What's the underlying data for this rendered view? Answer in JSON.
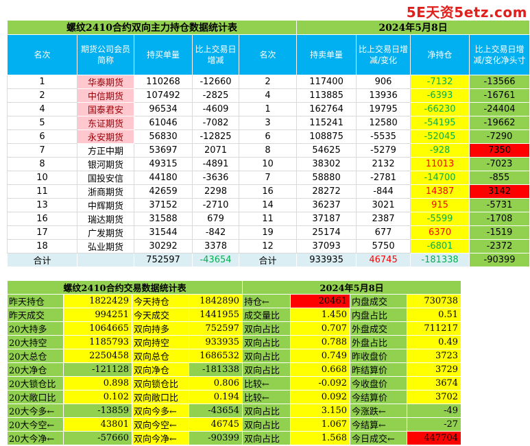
{
  "watermark": "5E天资5etz.com",
  "top": {
    "title": "螺纹2410合约双向主力持仓数据统计表",
    "date": "2024年5月8日",
    "headers": [
      "名次",
      "期货公司会员简称",
      "持买单量",
      "比上交易日增减",
      "名次",
      "持卖单量",
      "比上交易日增减/变化",
      "净持仓",
      "比上交易日增减/变化净头寸"
    ],
    "rows": [
      {
        "rank": "1",
        "name": "华泰期货",
        "buy": "110268",
        "buy_chg": "-12660",
        "rank2": "2",
        "sell": "117400",
        "sell_chg": "906",
        "net": "-7132",
        "net_chg": "-13566"
      },
      {
        "rank": "2",
        "name": "中信期货",
        "buy": "107492",
        "buy_chg": "-2825",
        "rank2": "4",
        "sell": "113885",
        "sell_chg": "13936",
        "net": "-6393",
        "net_chg": "-16761"
      },
      {
        "rank": "4",
        "name": "国泰君安",
        "buy": "96534",
        "buy_chg": "-4609",
        "rank2": "1",
        "sell": "162764",
        "sell_chg": "19795",
        "net": "-66230",
        "net_chg": "-24404"
      },
      {
        "rank": "5",
        "name": "东证期货",
        "buy": "61046",
        "buy_chg": "-7082",
        "rank2": "3",
        "sell": "115241",
        "sell_chg": "12580",
        "net": "-54195",
        "net_chg": "-19662"
      },
      {
        "rank": "6",
        "name": "永安期货",
        "buy": "56830",
        "buy_chg": "-12825",
        "rank2": "6",
        "sell": "108875",
        "sell_chg": "-5535",
        "net": "-52045",
        "net_chg": "-7290"
      },
      {
        "rank": "7",
        "name": "方正中期",
        "buy": "53697",
        "buy_chg": "2071",
        "rank2": "8",
        "sell": "54625",
        "sell_chg": "-5279",
        "net": "-928",
        "net_chg": "7350"
      },
      {
        "rank": "8",
        "name": "银河期货",
        "buy": "49315",
        "buy_chg": "-4891",
        "rank2": "10",
        "sell": "38302",
        "sell_chg": "2132",
        "net": "11013",
        "net_chg": "-7023"
      },
      {
        "rank": "10",
        "name": "国投安信",
        "buy": "44180",
        "buy_chg": "-3636",
        "rank2": "7",
        "sell": "58880",
        "sell_chg": "-2781",
        "net": "-14700",
        "net_chg": "-855"
      },
      {
        "rank": "11",
        "name": "浙商期货",
        "buy": "42659",
        "buy_chg": "2298",
        "rank2": "16",
        "sell": "28272",
        "sell_chg": "-844",
        "net": "14387",
        "net_chg": "3142"
      },
      {
        "rank": "13",
        "name": "中辉期货",
        "buy": "37152",
        "buy_chg": "-2710",
        "rank2": "14",
        "sell": "36237",
        "sell_chg": "3021",
        "net": "915",
        "net_chg": "-5731"
      },
      {
        "rank": "16",
        "name": "瑞达期货",
        "buy": "31588",
        "buy_chg": "679",
        "rank2": "11",
        "sell": "37187",
        "sell_chg": "2387",
        "net": "-5599",
        "net_chg": "-1708"
      },
      {
        "rank": "17",
        "name": "广发期货",
        "buy": "31544",
        "buy_chg": "-842",
        "rank2": "19",
        "sell": "25174",
        "sell_chg": "677",
        "net": "6370",
        "net_chg": "-1519"
      },
      {
        "rank": "18",
        "name": "弘业期货",
        "buy": "30292",
        "buy_chg": "3378",
        "rank2": "12",
        "sell": "37093",
        "sell_chg": "5750",
        "net": "-6801",
        "net_chg": "-2372"
      }
    ],
    "total": {
      "label": "合计",
      "buy": "752597",
      "buy_chg": "-43654",
      "label2": "合计",
      "sell": "933935",
      "sell_chg": "46745",
      "net": "-181338",
      "net_chg": "-90399"
    }
  },
  "bottom": {
    "title": "螺纹2410合约交易数据统计表",
    "date": "2024年5月8日",
    "rows": [
      [
        "昨天持仓",
        "1822429",
        "今天持仓",
        "1842890",
        "持仓←",
        "20461",
        "内盘成交",
        "730738"
      ],
      [
        "昨天成交",
        "994251",
        "今天成交",
        "1441955",
        "成交量比",
        "1.450",
        "内盘占比",
        "0.51"
      ],
      [
        "20大持多",
        "1064665",
        "双向持多",
        "752597",
        "双向占比",
        "0.707",
        "外盘成交",
        "711217"
      ],
      [
        "20大持空",
        "1185793",
        "双向持空",
        "933935",
        "双向占比",
        "0.788",
        "外盘占比",
        "0.49"
      ],
      [
        "20大总仓",
        "2250458",
        "双向总仓",
        "1686532",
        "双向占比",
        "0.749",
        "昨收盘价",
        "3723"
      ],
      [
        "20大净仓",
        "-121128",
        "双向净仓",
        "-181338",
        "双向占比",
        "0.668",
        "昨结算价",
        "3729"
      ],
      [
        "20大锁仓比",
        "0.898",
        "双向锁仓比",
        "0.806",
        "比较←",
        "-0.092",
        "今收盘价",
        "3674"
      ],
      [
        "20大敞口比",
        "0.102",
        "双向敞口比",
        "0.194",
        "比较←",
        "0.092",
        "今结算价",
        "3702"
      ],
      [
        "20大今多←",
        "-13859",
        "双向今多←",
        "-43654",
        "双向占比",
        "3.150",
        "今涨跌←",
        "-49"
      ],
      [
        "20大今空←",
        "43801",
        "双向今空←",
        "46745",
        "双向占比",
        "1.067",
        "今结算←",
        "-27"
      ],
      [
        "20大今净←",
        "-57660",
        "双向今净←",
        "-90399",
        "双向占比",
        "1.568",
        "今日成交←",
        "447704"
      ]
    ]
  },
  "colors": {
    "green": "#92d050",
    "yellow": "#ffff00",
    "red": "#ff0000",
    "blue": "#00b0f0",
    "pink": "#ffc7ce"
  }
}
